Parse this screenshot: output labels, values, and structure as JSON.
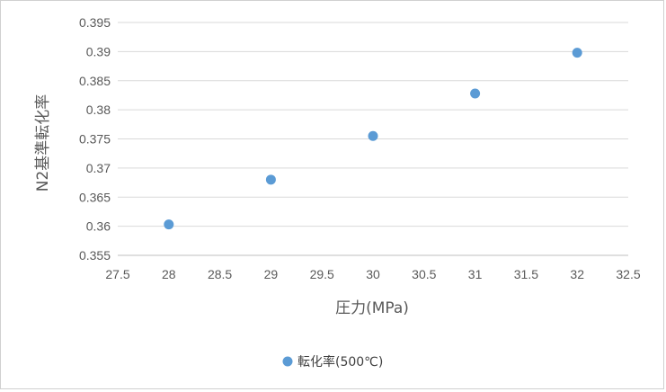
{
  "chart_data": {
    "type": "scatter",
    "xlabel": "圧力(MPa)",
    "ylabel": "N2基準転化率",
    "xlim": [
      27.5,
      32.5
    ],
    "ylim": [
      0.355,
      0.395
    ],
    "xticks": [
      "27.5",
      "28",
      "28.5",
      "29",
      "29.5",
      "30",
      "30.5",
      "31",
      "31.5",
      "32",
      "32.5"
    ],
    "yticks": [
      "0.355",
      "0.36",
      "0.365",
      "0.37",
      "0.375",
      "0.38",
      "0.385",
      "0.39",
      "0.395"
    ],
    "grid": "horizontal",
    "legend_position": "bottom",
    "series": [
      {
        "name": "転化率(500℃)",
        "color": "#5b9bd5",
        "points": [
          {
            "x": 28,
            "y": 0.3603
          },
          {
            "x": 29,
            "y": 0.368
          },
          {
            "x": 30,
            "y": 0.3755
          },
          {
            "x": 31,
            "y": 0.3828
          },
          {
            "x": 32,
            "y": 0.3898
          }
        ]
      }
    ]
  }
}
